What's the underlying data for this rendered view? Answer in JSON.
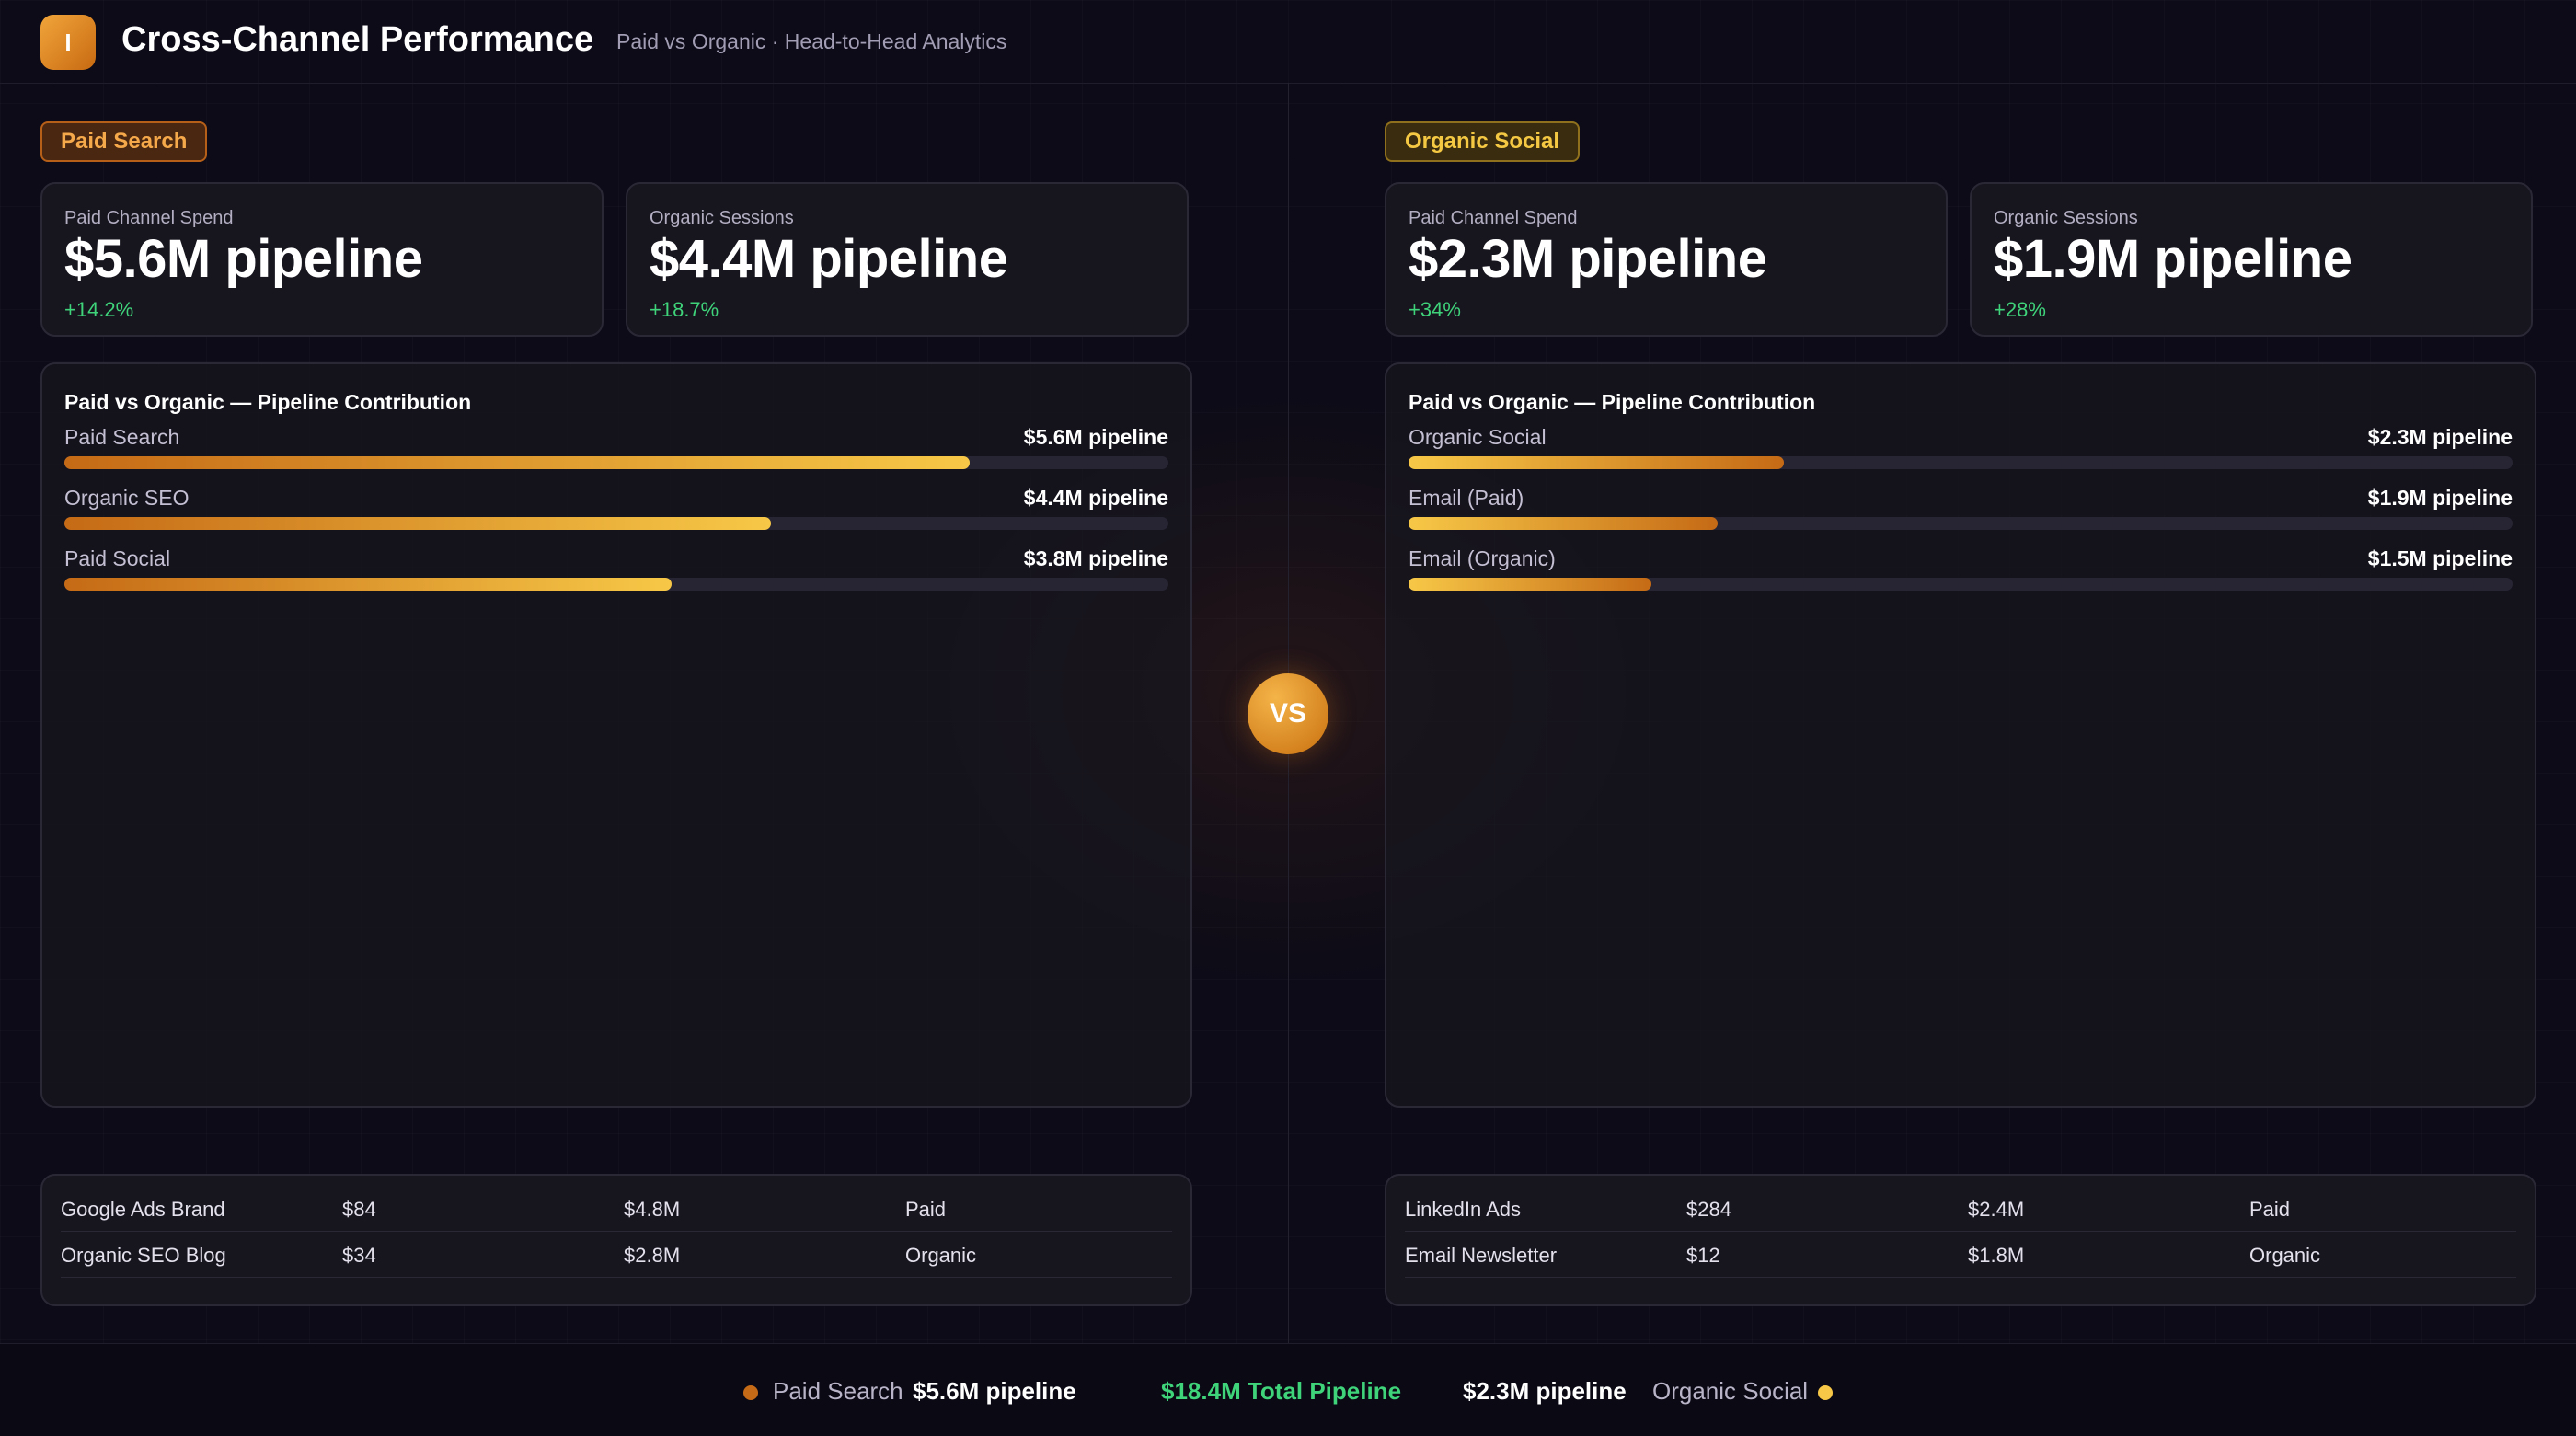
{
  "header": {
    "logo_letter": "I",
    "title": "Cross-Channel Performance",
    "subtitle": "Paid vs Organic · Head-to-Head Analytics"
  },
  "left": {
    "tag": "Paid Search",
    "kpis": [
      {
        "label": "Paid Channel Spend",
        "value": "$5.6M pipeline",
        "delta": "+14.2%"
      },
      {
        "label": "Organic Sessions",
        "value": "$4.4M pipeline",
        "delta": "+18.7%"
      }
    ],
    "contribution": {
      "title": "Paid vs Organic — Pipeline Contribution",
      "bars": [
        {
          "label": "Paid Search",
          "value": "$5.6M pipeline",
          "fill": 0.82
        },
        {
          "label": "Organic SEO",
          "value": "$4.4M pipeline",
          "fill": 0.64
        },
        {
          "label": "Paid Social",
          "value": "$3.8M pipeline",
          "fill": 0.55
        }
      ]
    },
    "table": [
      [
        "Google Ads Brand",
        "$84",
        "$4.8M",
        "Paid"
      ],
      [
        "Organic SEO Blog",
        "$34",
        "$2.8M",
        "Organic"
      ]
    ]
  },
  "right": {
    "tag": "Organic Social",
    "kpis": [
      {
        "label": "Paid Channel Spend",
        "value": "$2.3M pipeline",
        "delta": "+34%"
      },
      {
        "label": "Organic Sessions",
        "value": "$1.9M pipeline",
        "delta": "+28%"
      }
    ],
    "contribution": {
      "title": "Paid vs Organic — Pipeline Contribution",
      "bars": [
        {
          "label": "Organic Social",
          "value": "$2.3M pipeline",
          "fill": 0.34
        },
        {
          "label": "Email (Paid)",
          "value": "$1.9M pipeline",
          "fill": 0.28
        },
        {
          "label": "Email (Organic)",
          "value": "$1.5M pipeline",
          "fill": 0.22
        }
      ]
    },
    "table": [
      [
        "LinkedIn Ads",
        "$284",
        "$2.4M",
        "Paid"
      ],
      [
        "Email Newsletter",
        "$12",
        "$1.8M",
        "Organic"
      ]
    ]
  },
  "center": {
    "vs_label": "VS"
  },
  "footer": {
    "left_name": "Paid Search",
    "left_value": "$5.6M pipeline",
    "total": "$18.4M Total Pipeline",
    "right_value": "$2.3M pipeline",
    "right_name": "Organic Social"
  },
  "colors": {
    "paid_accent": "#c56a16",
    "organic_accent": "#f7c847",
    "positive": "#3fd37a"
  }
}
